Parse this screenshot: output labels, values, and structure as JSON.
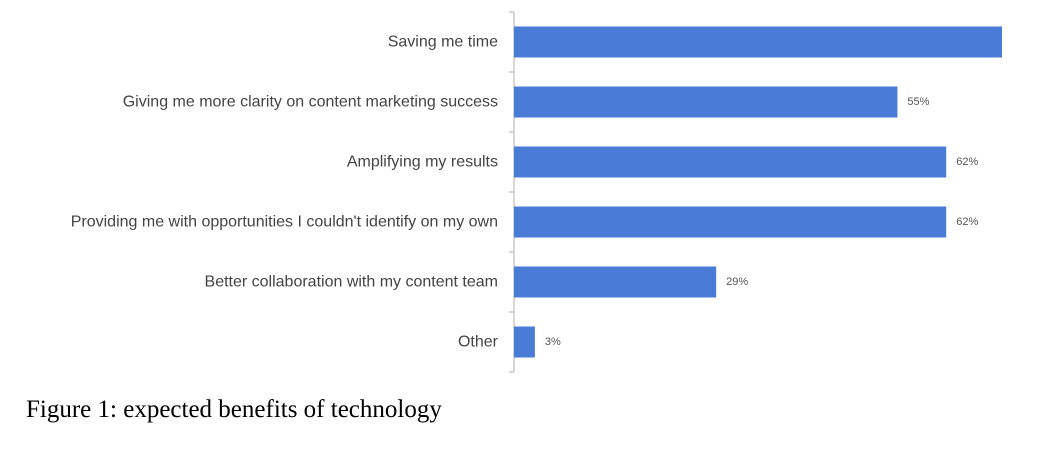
{
  "chart_data": {
    "type": "bar",
    "orientation": "horizontal",
    "categories": [
      "Saving me time",
      "Giving me more clarity on content marketing success",
      "Amplifying my results",
      "Providing me with opportunities I couldn't identify on my own",
      "Better collaboration with my content team",
      "Other"
    ],
    "values": [
      70,
      55,
      62,
      62,
      29,
      3
    ],
    "value_labels": [
      "",
      "55%",
      "62%",
      "62%",
      "29%",
      "3%"
    ],
    "xlim": [
      0,
      70
    ],
    "bar_color": "#4a7bd6",
    "axis_color": "#c8c8c8",
    "grid": false,
    "legend": "none"
  },
  "caption": "Figure 1: expected benefits of technology"
}
